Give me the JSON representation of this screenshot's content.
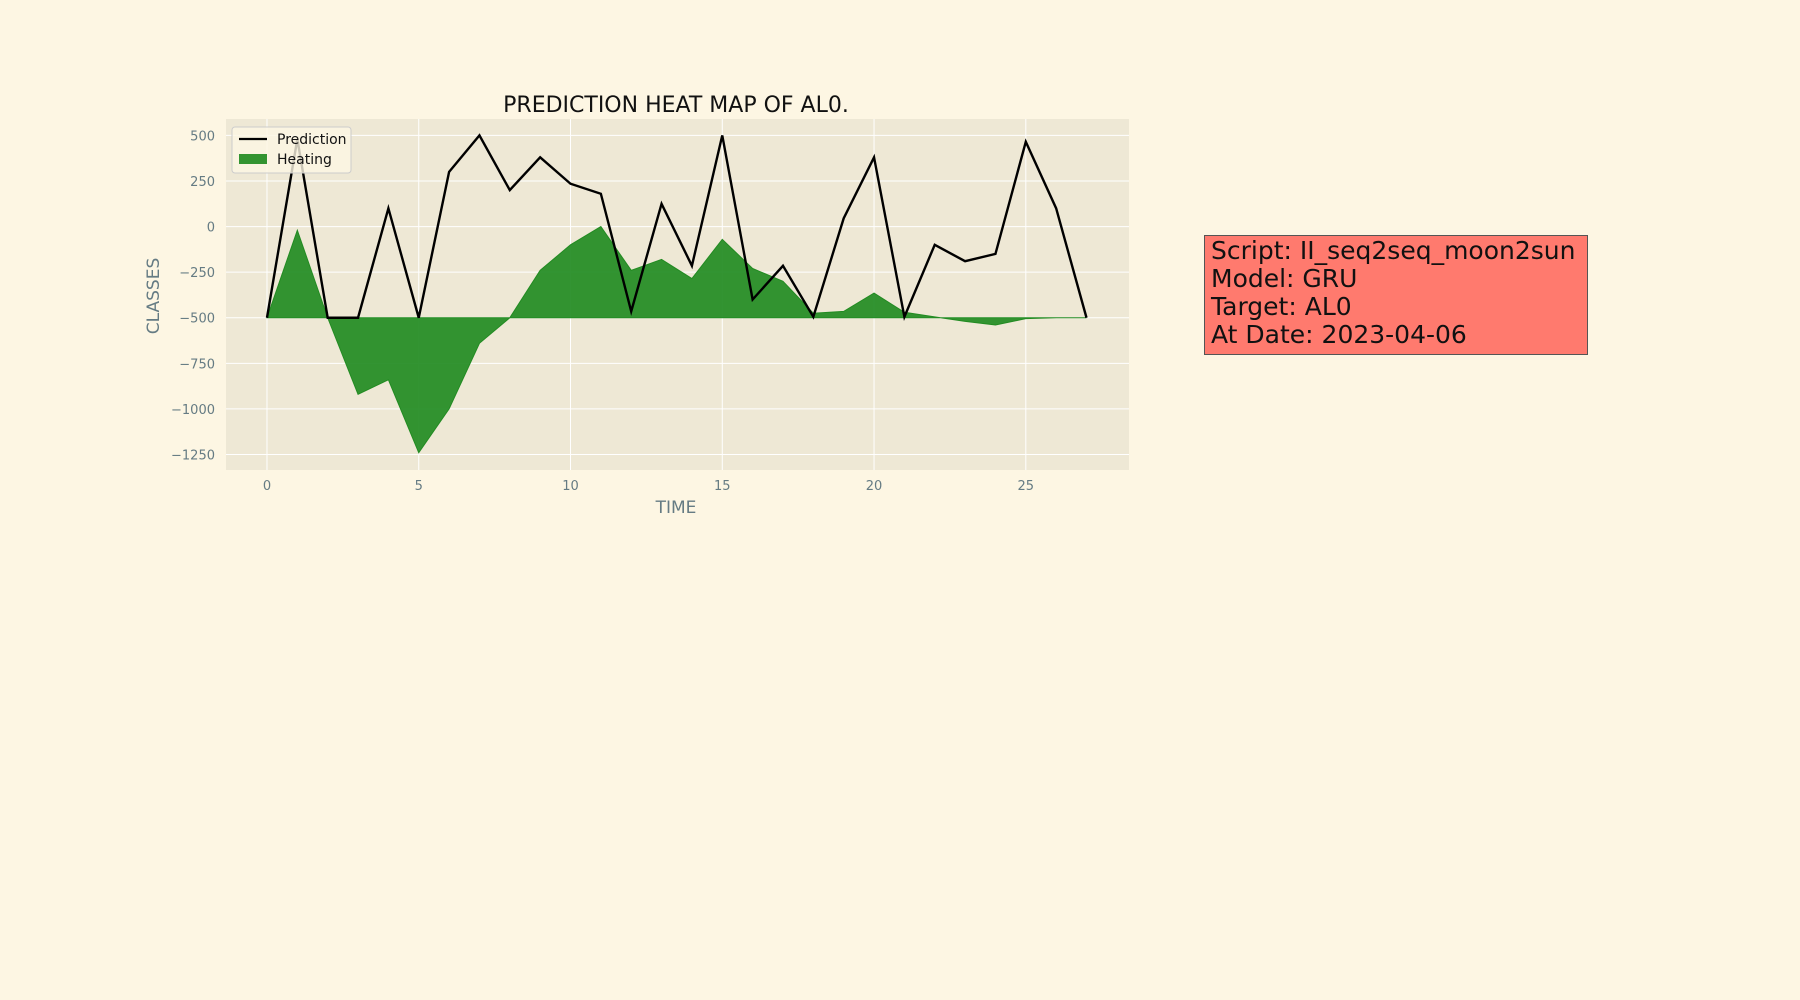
{
  "chart_data": {
    "type": "area",
    "title": "PREDICTION HEAT MAP OF AL0.",
    "xlabel": "TIME",
    "ylabel": "CLASSES",
    "xlim": [
      -1.35,
      28.4
    ],
    "ylim": [
      -1335,
      590
    ],
    "xticks": [
      0,
      5,
      10,
      15,
      20,
      25
    ],
    "yticks": [
      500,
      250,
      0,
      -250,
      -500,
      -750,
      -1000,
      -1250
    ],
    "grid": true,
    "legend_position": "top-left",
    "baseline": -500,
    "x": [
      0,
      1,
      2,
      3,
      4,
      5,
      6,
      7,
      8,
      9,
      10,
      11,
      12,
      13,
      14,
      15,
      16,
      17,
      18,
      19,
      20,
      21,
      22,
      23,
      24,
      25,
      26,
      27
    ],
    "series": [
      {
        "name": "Prediction",
        "kind": "line",
        "color": "#000000",
        "values": [
          -500,
          480,
          -500,
          -500,
          100,
          -500,
          300,
          500,
          200,
          380,
          235,
          180,
          -465,
          125,
          -215,
          500,
          -400,
          -215,
          -495,
          45,
          380,
          -495,
          -100,
          -190,
          -150,
          465,
          100,
          -500
        ]
      },
      {
        "name": "Heating",
        "kind": "fill",
        "color": "#228b22",
        "values": [
          -500,
          -20,
          -500,
          -920,
          -840,
          -1240,
          -1000,
          -640,
          -500,
          -240,
          -100,
          0,
          -240,
          -180,
          -285,
          -70,
          -230,
          -300,
          -475,
          -465,
          -365,
          -470,
          -495,
          -520,
          -540,
          -505,
          -500,
          -500
        ]
      }
    ]
  },
  "info_box": {
    "script": "Script: II_seq2seq_moon2sun",
    "model": "Model: GRU",
    "target": "Target: AL0",
    "date": "At Date: 2023-04-06",
    "background": "#ff7a6e"
  }
}
